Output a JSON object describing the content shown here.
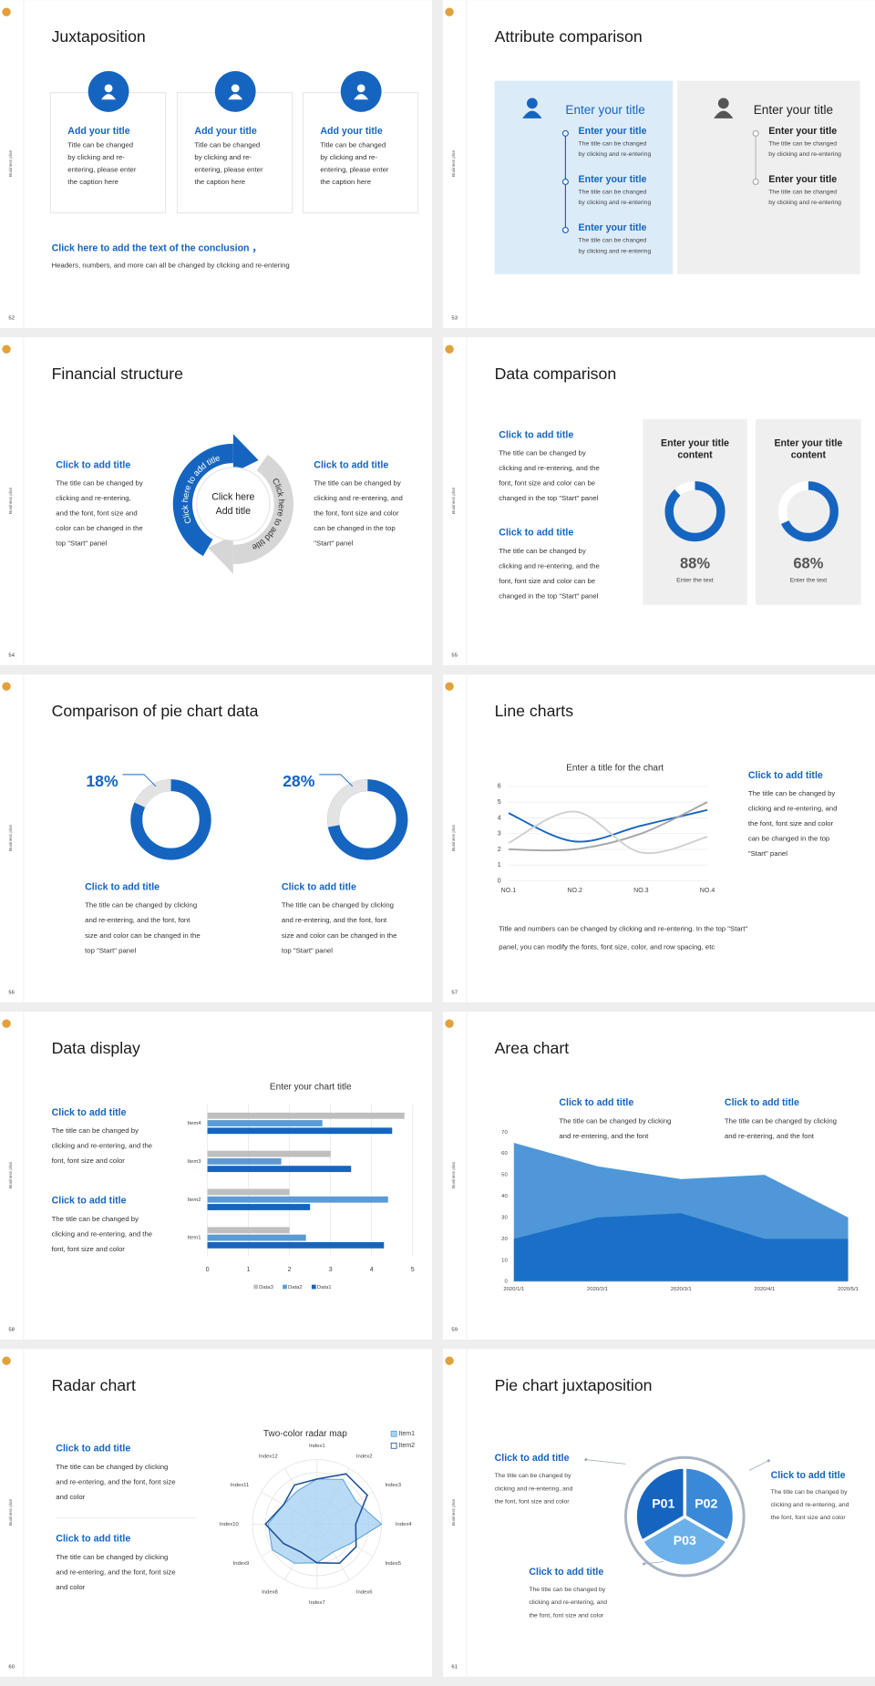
{
  "side_label": "Business plan",
  "slides": [
    {
      "page": 52,
      "title": "Juxtaposition",
      "cards": [
        {
          "title": "Add your title",
          "body": [
            "Title can be changed",
            "by clicking and re-",
            "entering, please enter",
            "the caption here"
          ]
        },
        {
          "title": "Add your title",
          "body": [
            "Title can be changed",
            "by clicking and re-",
            "entering, please enter",
            "the caption here"
          ]
        },
        {
          "title": "Add your title",
          "body": [
            "Title can be changed",
            "by clicking and re-",
            "entering, please enter",
            "the caption here"
          ]
        }
      ],
      "conclusion": {
        "title": "Click here to add the text of the conclusion ，",
        "text": "Headers, numbers, and more can all be changed by clicking and re-entering"
      }
    },
    {
      "page": 53,
      "title": "Attribute comparison",
      "panels": [
        {
          "title": "Enter your title",
          "items": [
            {
              "title": "Enter your title",
              "body": [
                "The title can be changed",
                "by clicking and re-entering"
              ]
            },
            {
              "title": "Enter your title",
              "body": [
                "The title can be changed",
                "by clicking and re-entering"
              ]
            },
            {
              "title": "Enter your title",
              "body": [
                "The title can be changed",
                "by clicking and re-entering"
              ]
            }
          ]
        },
        {
          "title": "Enter your title",
          "items": [
            {
              "title": "Enter your title",
              "body": [
                "The title can be changed",
                "by clicking and re-entering"
              ]
            },
            {
              "title": "Enter your title",
              "body": [
                "The title can be changed",
                "by clicking and re-entering"
              ]
            }
          ]
        }
      ]
    },
    {
      "page": 54,
      "title": "Financial structure",
      "blocks": [
        {
          "title": "Click to add title",
          "body": [
            "The title can be changed by",
            "clicking and re-entering,",
            "and the font, font size and",
            "color can be changed in the",
            "top \"Start\" panel"
          ]
        },
        {
          "title": "Click to add title",
          "body": [
            "The title can be changed by",
            "clicking and re-entering, and",
            "the font, font size and color",
            "can be changed in the top",
            "\"Start\" panel"
          ]
        }
      ],
      "cycle": {
        "arcs": [
          "Click here to add title",
          "Click here to add title"
        ],
        "center": [
          "Click here",
          "Add title"
        ]
      }
    },
    {
      "page": 55,
      "title": "Data comparison",
      "blocks": [
        {
          "title": "Click to add title",
          "body": [
            "The title can be changed by",
            "clicking and re-entering, and the",
            "font, font size and color can be",
            "changed in the top \"Start\" panel"
          ]
        },
        {
          "title": "Click to add title",
          "body": [
            "The title can be changed by",
            "clicking and re-entering, and the",
            "font, font size and color can be",
            "changed in the top \"Start\" panel"
          ]
        }
      ],
      "cards": [
        {
          "title": [
            "Enter your title",
            "content"
          ],
          "value": 88,
          "value_label": "88%",
          "caption": "Enter the text",
          "color": "#1565c0"
        },
        {
          "title": [
            "Enter your title",
            "content"
          ],
          "value": 68,
          "value_label": "68%",
          "caption": "Enter the text",
          "color": "#1565c0"
        }
      ]
    },
    {
      "page": 56,
      "title": "Comparison of pie chart data",
      "charts": [
        {
          "value": 18,
          "value_label": "18%",
          "title": "Click to add title",
          "body": [
            "The title can be changed by clicking",
            "and re-entering, and the font, font",
            "size and color can be changed in the",
            "top \"Start\" panel"
          ]
        },
        {
          "value": 28,
          "value_label": "28%",
          "title": "Click to add title",
          "body": [
            "The title can be changed by clicking",
            "and re-entering, and the font, font",
            "size and color can be changed in the",
            "top \"Start\" panel"
          ]
        }
      ]
    },
    {
      "page": 57,
      "title": "Line charts",
      "chart": {
        "type": "line",
        "title": "Enter a title for the chart",
        "categories": [
          "NO.1",
          "NO.2",
          "NO.3",
          "NO.4"
        ],
        "series": [
          {
            "color": "#1565c0",
            "values": [
              4.3,
              2.5,
              3.5,
              4.5
            ]
          },
          {
            "color": "#a6a6a6",
            "values": [
              2,
              2,
              3,
              5
            ]
          },
          {
            "color": "#d0d0d0",
            "values": [
              2.4,
              4.4,
              1.8,
              2.8
            ]
          }
        ],
        "ylim": [
          0,
          6
        ],
        "yticks": [
          0,
          1,
          2,
          3,
          4,
          5,
          6
        ],
        "grid": true
      },
      "block": {
        "title": "Click to add title",
        "body": [
          "The title can be changed by",
          "clicking and re-entering, and",
          "the font, font size and color",
          "can be changed in the top",
          "\"Start\" panel"
        ]
      },
      "note": [
        "Title and numbers can be changed by clicking and re-entering. In the top \"Start\"",
        "panel, you can modify the fonts, font size, color, and row spacing, etc"
      ]
    },
    {
      "page": 58,
      "title": "Data display",
      "blocks": [
        {
          "title": "Click to add title",
          "body": [
            "The title can be changed by",
            "clicking and re-entering, and the",
            "font, font size and color"
          ]
        },
        {
          "title": "Click to add title",
          "body": [
            "The title can be changed by",
            "clicking and re-entering, and the",
            "font, font size and color"
          ]
        }
      ],
      "chart": {
        "type": "bar",
        "orientation": "horizontal",
        "title": "Enter your chart title",
        "categories": [
          "Item1",
          "Item2",
          "Item3",
          "Item4"
        ],
        "series": [
          {
            "name": "Data3",
            "color": "#bfbfbf",
            "values": [
              2,
              2,
              3,
              4.8
            ]
          },
          {
            "name": "Data2",
            "color": "#5b9bd5",
            "values": [
              2.4,
              4.4,
              1.8,
              2.8
            ]
          },
          {
            "name": "Data1",
            "color": "#1565c0",
            "values": [
              4.3,
              2.5,
              3.5,
              4.5
            ]
          }
        ],
        "xlim": [
          0,
          5
        ],
        "xticks": [
          0,
          1,
          2,
          3,
          4,
          5
        ],
        "grid": true
      }
    },
    {
      "page": 59,
      "title": "Area chart",
      "blocks": [
        {
          "title": "Click to add title",
          "body": [
            "The title can be changed by clicking",
            "and re-entering, and the font"
          ]
        },
        {
          "title": "Click to add title",
          "body": [
            "The title can be changed by clicking",
            "and re-entering, and the font"
          ]
        }
      ],
      "chart": {
        "type": "area",
        "x": [
          "2020/1/1",
          "2020/2/1",
          "2020/3/1",
          "2020/4/1",
          "2020/5/1"
        ],
        "series": [
          {
            "color": "#4f97d8",
            "values": [
              65,
              54,
              48,
              50,
              30
            ]
          },
          {
            "color": "#1a70c6",
            "values": [
              20,
              30,
              32,
              20,
              20
            ]
          }
        ],
        "ylim": [
          0,
          70
        ],
        "yticks": [
          0,
          10,
          20,
          30,
          40,
          50,
          60,
          70
        ]
      }
    },
    {
      "page": 60,
      "title": "Radar chart",
      "blocks": [
        {
          "title": "Click to add title",
          "body": [
            "The title can be changed by clicking",
            "and re-entering, and the font, font size",
            "and color"
          ]
        },
        {
          "title": "Click to add title",
          "body": [
            "The title can be changed by clicking",
            "and re-entering, and the font, font size",
            "and color"
          ]
        }
      ],
      "chart": {
        "type": "radar",
        "title": "Two-color radar map",
        "categories": [
          "Index1",
          "Index2",
          "Index3",
          "Index4",
          "Index5",
          "Index6",
          "Index7",
          "Index8",
          "Index9",
          "Index10",
          "Index11",
          "Index12"
        ],
        "series": [
          {
            "name": "Item1",
            "color": "#5ba3dd",
            "values": [
              3.5,
              4,
              3.5,
              5,
              3,
              2.5,
              3,
              3.5,
              4,
              3.8,
              3,
              3
            ]
          },
          {
            "name": "Item2",
            "color": "#1a4f95",
            "values": [
              3.5,
              4.5,
              4.5,
              3,
              3.5,
              3.5,
              3,
              2.5,
              3,
              4,
              3,
              3.5
            ]
          }
        ],
        "rlim": [
          0,
          5
        ],
        "legend": "top-right"
      }
    },
    {
      "page": 61,
      "title": "Pie chart juxtaposition",
      "blocks": [
        {
          "title": "Click to add title",
          "body": [
            "The title can be changed by",
            "clicking and re-entering, and",
            "the font, font size and color"
          ]
        },
        {
          "title": "Click to add title",
          "body": [
            "The title can be changed by",
            "clicking and re-entering, and",
            "the font, font size and color"
          ]
        },
        {
          "title": "Click to add title",
          "body": [
            "The title can be changed by",
            "clicking and re-entering, and",
            "the font, font size and color"
          ]
        }
      ],
      "segments": [
        {
          "label": "P01",
          "color": "#1565c0"
        },
        {
          "label": "P02",
          "color": "#3a89d8"
        },
        {
          "label": "P03",
          "color": "#6cb0ea"
        }
      ]
    }
  ]
}
